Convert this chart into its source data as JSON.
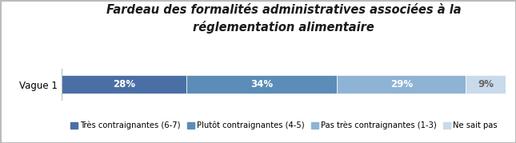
{
  "title_line1": "Fardeau des formalités administratives associées à la",
  "title_line2": "réglementation alimentaire",
  "row_label": "Vague 1",
  "values": [
    28,
    34,
    29,
    9
  ],
  "labels": [
    "28%",
    "34%",
    "29%",
    "9%"
  ],
  "colors": [
    "#4a6fa5",
    "#5b8db8",
    "#8fb3d4",
    "#c9daea"
  ],
  "label_colors": [
    "white",
    "white",
    "white",
    "#666666"
  ],
  "legend_labels": [
    "Très contraignantes (6-7)",
    "Plutôt contraignantes (4-5)",
    "Pas très contraignantes (1-3)",
    "Ne sait pas"
  ],
  "background_color": "#ffffff",
  "border_color": "#bbbbbb",
  "title_fontsize": 10.5,
  "bar_label_fontsize": 8.5,
  "legend_fontsize": 7.2,
  "row_label_fontsize": 8.5
}
